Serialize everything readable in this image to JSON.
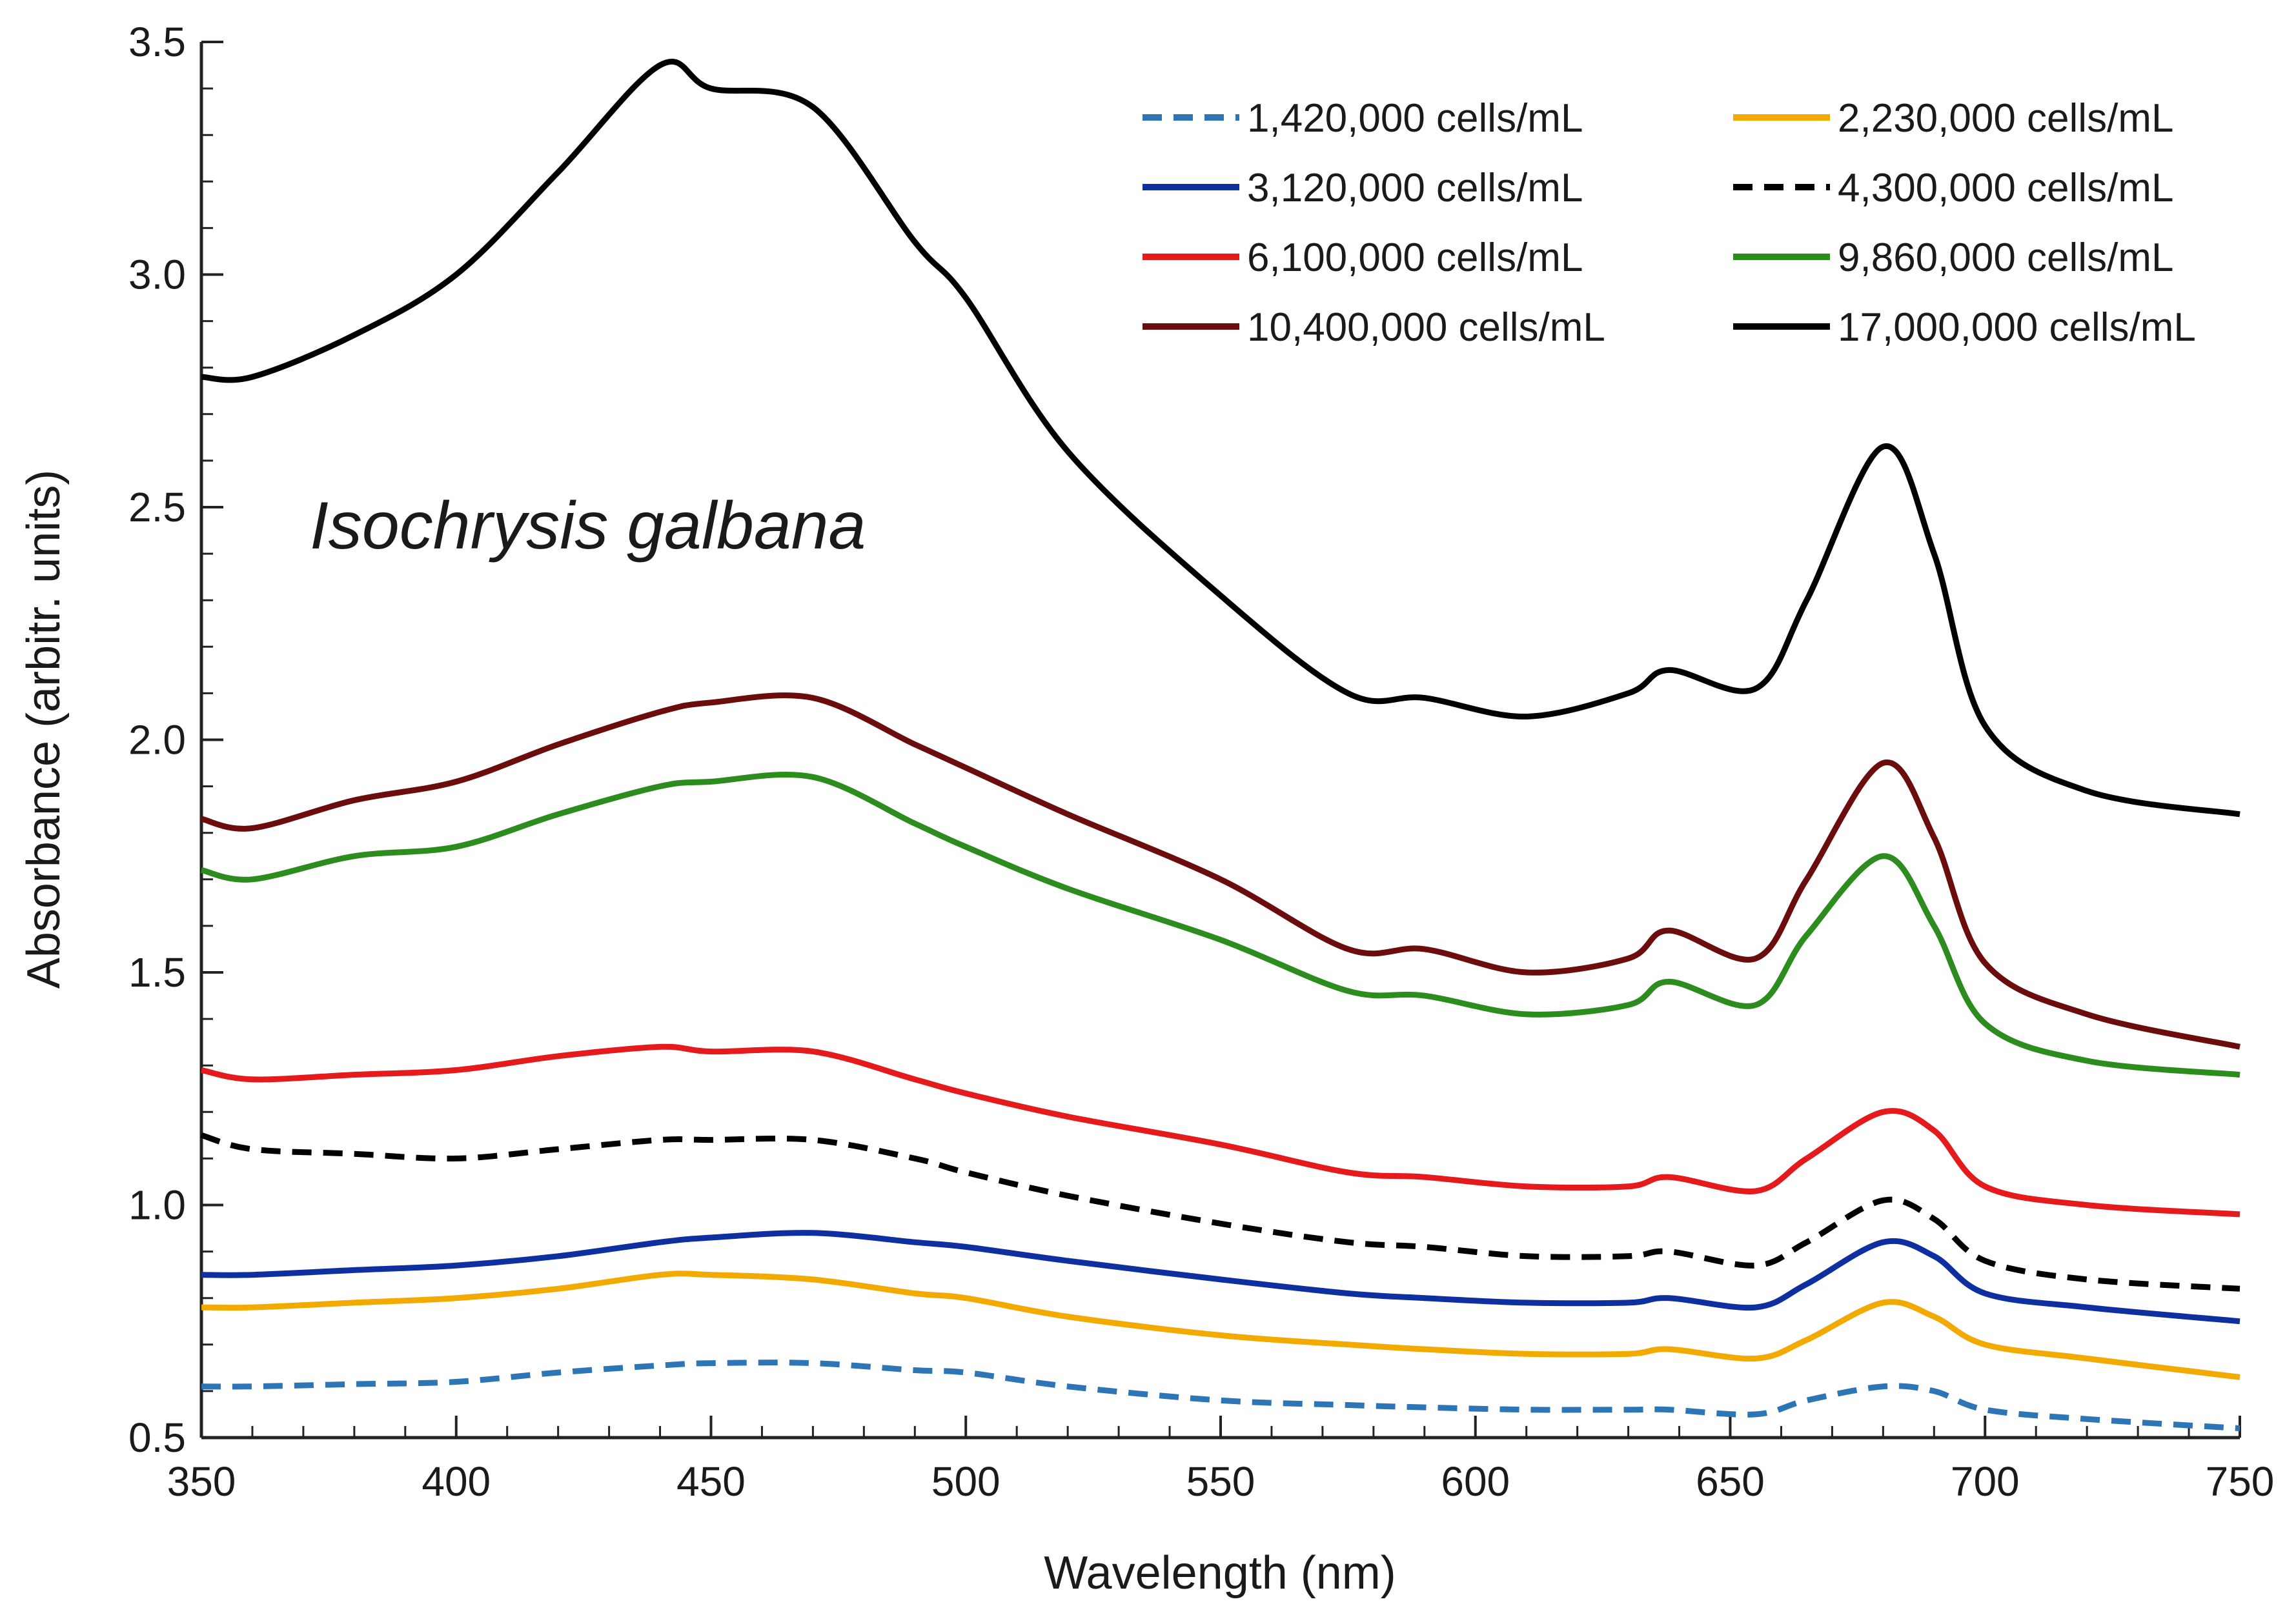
{
  "chart_data": {
    "type": "line",
    "title": "",
    "annotation": "Isochrysis galbana",
    "xlabel": "Wavelength (nm)",
    "ylabel": "Absorbance (arbitr. units)",
    "xlim": [
      350,
      750
    ],
    "ylim": [
      0.5,
      3.5
    ],
    "x_ticks": [
      350,
      400,
      450,
      500,
      550,
      600,
      650,
      700,
      750
    ],
    "x_tick_labels": [
      "350",
      "400",
      "450",
      "500",
      "550",
      "600",
      "650",
      "700",
      "750"
    ],
    "y_ticks": [
      0.5,
      1.0,
      1.5,
      2.0,
      2.5,
      3.0,
      3.5
    ],
    "y_tick_labels": [
      "0.5",
      "1.0",
      "1.5",
      "2.0",
      "2.5",
      "3.0",
      "3.5"
    ],
    "x_minor_step": 10,
    "y_minor_step": 0.1,
    "grid": false,
    "legend_position": "top-right",
    "x": [
      350,
      360,
      380,
      400,
      420,
      440,
      450,
      470,
      490,
      500,
      520,
      550,
      575,
      590,
      610,
      630,
      638,
      655,
      665,
      680,
      690,
      700,
      720,
      750
    ],
    "series": [
      {
        "name": "1,420,000 cells/mL",
        "color": "#2e75b6",
        "dash": "dashed",
        "values": [
          0.61,
          0.61,
          0.615,
          0.62,
          0.64,
          0.655,
          0.66,
          0.66,
          0.645,
          0.64,
          0.61,
          0.58,
          0.57,
          0.565,
          0.56,
          0.56,
          0.56,
          0.55,
          0.58,
          0.61,
          0.6,
          0.56,
          0.54,
          0.52
        ]
      },
      {
        "name": "2,230,000 cells/mL",
        "color": "#f2a900",
        "dash": "solid",
        "values": [
          0.78,
          0.78,
          0.79,
          0.8,
          0.82,
          0.85,
          0.85,
          0.84,
          0.81,
          0.8,
          0.76,
          0.72,
          0.7,
          0.69,
          0.68,
          0.68,
          0.69,
          0.67,
          0.71,
          0.79,
          0.76,
          0.7,
          0.67,
          0.63
        ]
      },
      {
        "name": "3,120,000 cells/mL",
        "color": "#0e2fa0",
        "dash": "solid",
        "values": [
          0.85,
          0.85,
          0.86,
          0.87,
          0.89,
          0.92,
          0.93,
          0.94,
          0.92,
          0.91,
          0.88,
          0.84,
          0.81,
          0.8,
          0.79,
          0.79,
          0.8,
          0.78,
          0.83,
          0.92,
          0.89,
          0.81,
          0.78,
          0.75
        ]
      },
      {
        "name": "4,300,000 cells/mL",
        "color": "#000000",
        "dash": "dashed",
        "values": [
          1.15,
          1.12,
          1.11,
          1.1,
          1.12,
          1.14,
          1.14,
          1.14,
          1.1,
          1.07,
          1.02,
          0.96,
          0.92,
          0.91,
          0.89,
          0.89,
          0.9,
          0.87,
          0.92,
          1.01,
          0.97,
          0.88,
          0.84,
          0.82
        ]
      },
      {
        "name": "6,100,000 cells/mL",
        "color": "#e41a1c",
        "dash": "solid",
        "values": [
          1.29,
          1.27,
          1.28,
          1.29,
          1.32,
          1.34,
          1.33,
          1.33,
          1.27,
          1.24,
          1.19,
          1.13,
          1.07,
          1.06,
          1.04,
          1.04,
          1.06,
          1.03,
          1.1,
          1.2,
          1.16,
          1.04,
          1.0,
          0.98
        ]
      },
      {
        "name": "9,860,000 cells/mL",
        "color": "#2c8c1e",
        "dash": "solid",
        "values": [
          1.72,
          1.7,
          1.75,
          1.77,
          1.84,
          1.9,
          1.91,
          1.92,
          1.82,
          1.77,
          1.68,
          1.57,
          1.46,
          1.45,
          1.41,
          1.43,
          1.48,
          1.43,
          1.58,
          1.75,
          1.6,
          1.39,
          1.31,
          1.28
        ]
      },
      {
        "name": "10,400,000 cells/mL",
        "color": "#6b0d0d",
        "dash": "solid",
        "values": [
          1.83,
          1.81,
          1.87,
          1.91,
          1.99,
          2.06,
          2.08,
          2.09,
          1.99,
          1.94,
          1.84,
          1.7,
          1.55,
          1.55,
          1.5,
          1.53,
          1.59,
          1.53,
          1.7,
          1.95,
          1.79,
          1.52,
          1.41,
          1.34
        ]
      },
      {
        "name": "17,000,000 cells/mL",
        "color": "#000000",
        "dash": "solid",
        "values": [
          2.78,
          2.78,
          2.87,
          3.0,
          3.22,
          3.45,
          3.4,
          3.36,
          3.07,
          2.95,
          2.62,
          2.31,
          2.1,
          2.09,
          2.05,
          2.1,
          2.15,
          2.11,
          2.3,
          2.63,
          2.4,
          2.03,
          1.89,
          1.84
        ]
      }
    ]
  }
}
